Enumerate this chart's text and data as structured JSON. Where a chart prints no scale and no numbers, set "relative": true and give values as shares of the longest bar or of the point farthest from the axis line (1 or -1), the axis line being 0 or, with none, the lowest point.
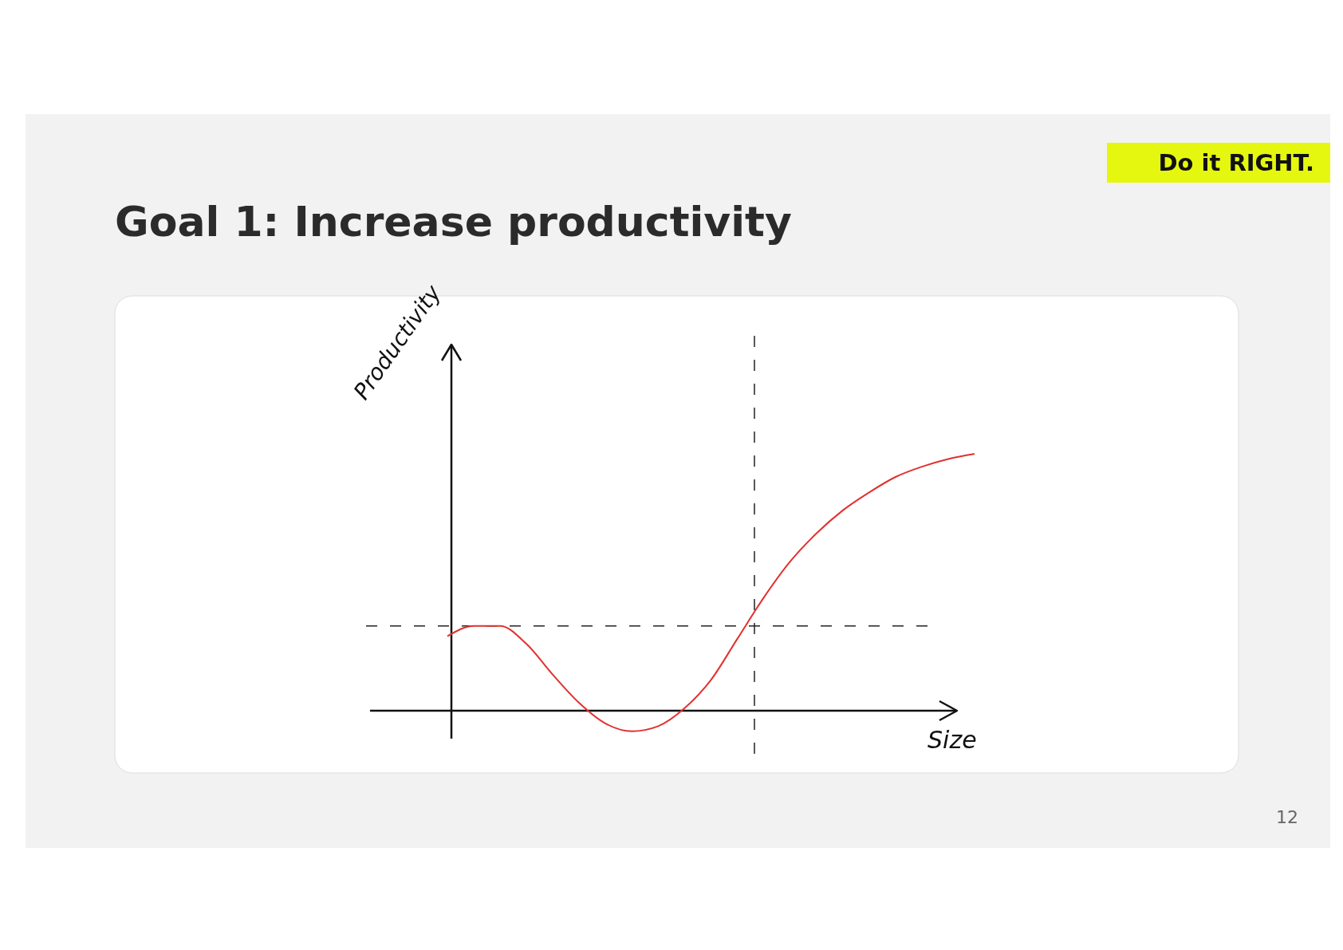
{
  "chart_data": {
    "type": "line",
    "title": "Goal 1: Increase productivity",
    "subtitle": "Do it RIGHT.",
    "xlabel": "Size",
    "ylabel": "Productivity",
    "relative": true,
    "categories": [
      null,
      null,
      null,
      null,
      null,
      null,
      null,
      null,
      null,
      null,
      null,
      null,
      null,
      null,
      null,
      null,
      null,
      null,
      null,
      null,
      null
    ],
    "series": [
      {
        "color": "#e0312f",
        "values": [
          0.29,
          0.33,
          0.33,
          0.26,
          0.14,
          0.03,
          -0.05,
          -0.08,
          -0.06,
          0.01,
          0.12,
          0.28,
          0.44,
          0.58,
          0.69,
          0.78,
          0.85,
          0.91,
          0.95,
          0.98,
          1.0
        ]
      }
    ],
    "ref_lines": [
      {
        "axis": "y",
        "value": 0.33,
        "color": "#222222",
        "line_style": "dashed"
      }
    ],
    "annotations": [
      "12"
    ],
    "line_style": "solid"
  }
}
